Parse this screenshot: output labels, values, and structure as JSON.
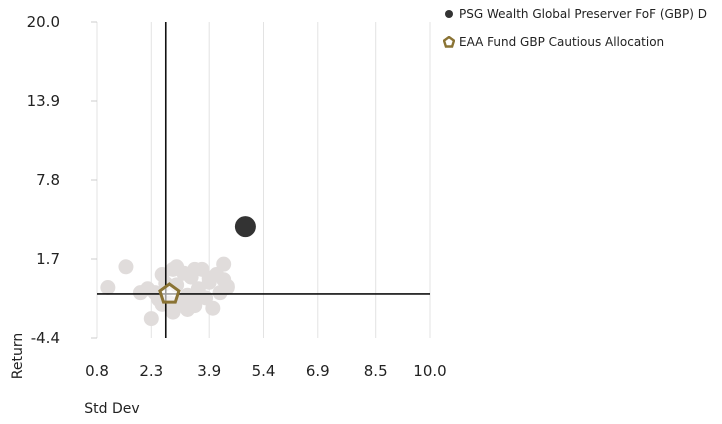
{
  "chart_data": {
    "type": "scatter",
    "xlabel": "Std Dev",
    "ylabel": "Return",
    "xlim": [
      0.8,
      10.0
    ],
    "ylim": [
      -4.4,
      20.0
    ],
    "xticks": [
      "0.8",
      "2.3",
      "3.9",
      "5.4",
      "6.9",
      "8.5",
      "10.0"
    ],
    "yticks": [
      "20.0",
      "13.9",
      "7.8",
      "1.7",
      "-4.4"
    ],
    "grid": "vertical",
    "legend_position": "top-right",
    "crosshair": {
      "x": 2.7,
      "y": -1.0
    },
    "series": [
      {
        "name": "PSG Wealth Global Preserver FoF (GBP) D",
        "marker": "circle",
        "color": "#333333",
        "points": [
          [
            4.9,
            4.2
          ]
        ]
      },
      {
        "name": "EAA Fund GBP Cautious Allocation",
        "marker": "pentagon",
        "color": "#8a7334",
        "points": [
          [
            2.8,
            -1.0
          ]
        ]
      },
      {
        "name": "",
        "marker": "circle",
        "color": "#e0dcdb",
        "points": [
          [
            1.1,
            -0.5
          ],
          [
            1.6,
            1.1
          ],
          [
            2.0,
            -0.9
          ],
          [
            2.2,
            -0.6
          ],
          [
            2.3,
            -2.9
          ],
          [
            2.4,
            -0.9
          ],
          [
            2.5,
            -1.4
          ],
          [
            2.6,
            0.5
          ],
          [
            2.7,
            -0.2
          ],
          [
            2.8,
            -1.7
          ],
          [
            2.9,
            0.9
          ],
          [
            3.0,
            -0.3
          ],
          [
            3.1,
            -1.6
          ],
          [
            3.2,
            0.6
          ],
          [
            3.3,
            -1.1
          ],
          [
            3.4,
            0.3
          ],
          [
            3.5,
            -1.9
          ],
          [
            3.6,
            -0.6
          ],
          [
            3.7,
            0.9
          ],
          [
            3.8,
            -1.3
          ],
          [
            3.9,
            -0.1
          ],
          [
            4.0,
            -2.1
          ],
          [
            4.1,
            0.5
          ],
          [
            4.2,
            -0.9
          ],
          [
            4.3,
            1.3
          ],
          [
            4.4,
            -0.4
          ],
          [
            3.3,
            -2.2
          ],
          [
            2.6,
            -1.8
          ],
          [
            3.0,
            1.1
          ],
          [
            3.5,
            0.9
          ],
          [
            3.9,
            0.2
          ],
          [
            4.3,
            0.1
          ],
          [
            4.4,
            -0.5
          ],
          [
            2.9,
            -2.4
          ],
          [
            3.6,
            -1.2
          ]
        ]
      }
    ]
  }
}
